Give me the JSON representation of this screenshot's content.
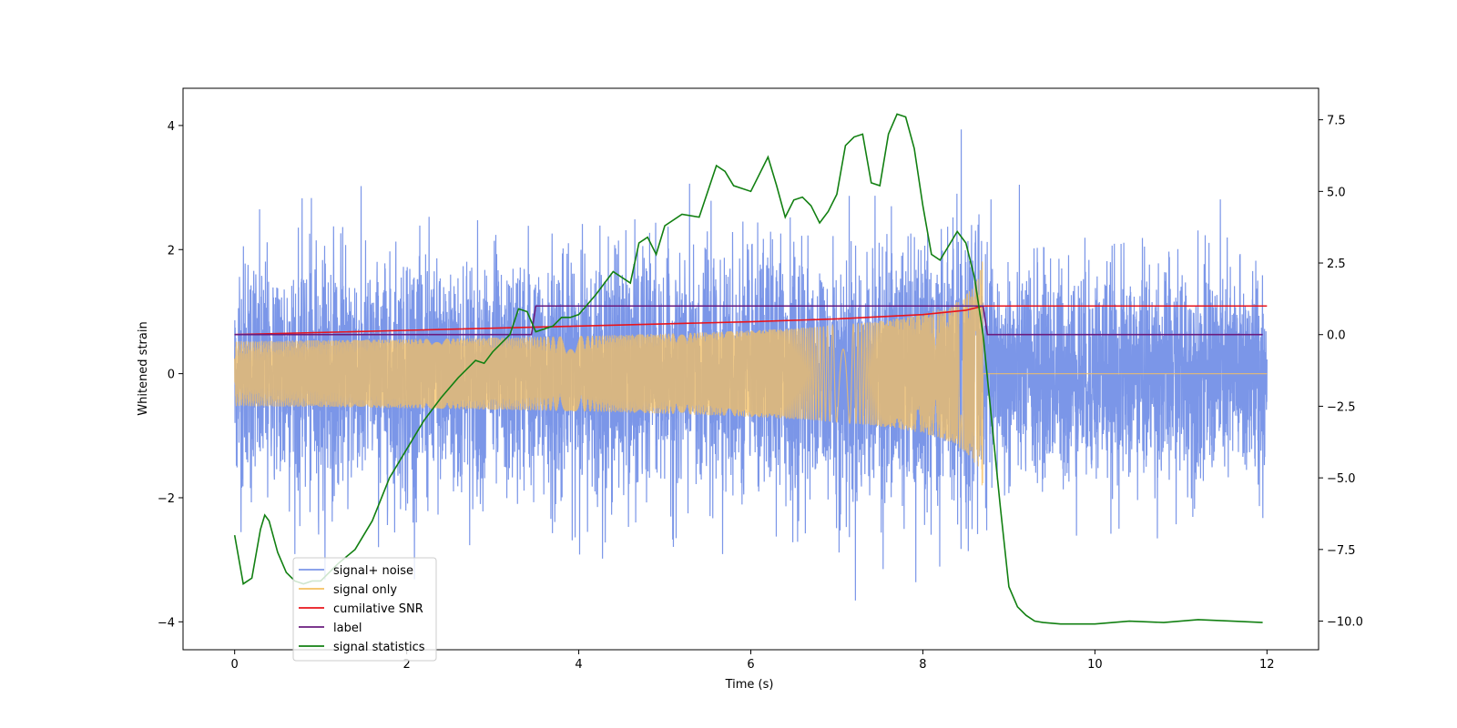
{
  "chart_data": {
    "type": "line",
    "title": "",
    "xlabel": "Time (s)",
    "ylabel": "Whitened strain",
    "ylabel_right": "",
    "xlim": [
      -0.6,
      12.6
    ],
    "ylim": [
      -4.45,
      4.6
    ],
    "ylim_right": [
      -11.0,
      8.6
    ],
    "x_ticks": [
      0,
      2,
      4,
      6,
      8,
      10,
      12
    ],
    "x_tick_labels": [
      "0",
      "2",
      "4",
      "6",
      "8",
      "10",
      "12"
    ],
    "y_ticks": [
      -4,
      -2,
      0,
      2,
      4
    ],
    "y_tick_labels": [
      "−4",
      "−2",
      "0",
      "2",
      "4"
    ],
    "y_right_ticks": [
      -10,
      -7.5,
      -5,
      -2.5,
      0,
      2.5,
      5,
      7.5
    ],
    "y_right_tick_labels": [
      "−10.0",
      "−7.5",
      "−5.0",
      "−2.5",
      "0.0",
      "2.5",
      "5.0",
      "7.5"
    ],
    "grid": false,
    "legend_position": "lower-left",
    "series": [
      {
        "name": "signal+ noise",
        "color": "#7b96e8",
        "axis": "left",
        "noise_sigma": 1.0,
        "x_range": [
          0,
          12
        ]
      },
      {
        "name": "signal only",
        "color": "#f5c061",
        "axis": "left",
        "chirp_peak_time": 8.7,
        "chirp_peak_amplitude": 1.9,
        "x_range": [
          0,
          12
        ]
      },
      {
        "name": "cumilative SNR",
        "color": "#e8141c",
        "axis": "right",
        "x": [
          0,
          2,
          4,
          6,
          7,
          8,
          8.5,
          8.7,
          8.72,
          12
        ],
        "y": [
          0.0,
          0.15,
          0.3,
          0.45,
          0.55,
          0.7,
          0.85,
          1.0,
          1.0,
          1.0
        ]
      },
      {
        "name": "label",
        "color": "#6a1b7e",
        "axis": "right",
        "x": [
          0,
          3.45,
          3.5,
          8.7,
          8.75,
          11.95
        ],
        "y": [
          0,
          0,
          1,
          1,
          0,
          0
        ]
      },
      {
        "name": "signal statistics",
        "color": "#128012",
        "axis": "right",
        "x": [
          0,
          0.1,
          0.2,
          0.3,
          0.35,
          0.4,
          0.5,
          0.6,
          0.7,
          0.8,
          0.9,
          1.0,
          1.2,
          1.4,
          1.6,
          1.8,
          2.0,
          2.2,
          2.4,
          2.6,
          2.8,
          2.9,
          3.0,
          3.2,
          3.3,
          3.4,
          3.5,
          3.6,
          3.7,
          3.8,
          3.9,
          4.0,
          4.2,
          4.4,
          4.6,
          4.7,
          4.8,
          4.9,
          5.0,
          5.2,
          5.4,
          5.6,
          5.7,
          5.8,
          6.0,
          6.2,
          6.3,
          6.4,
          6.5,
          6.6,
          6.7,
          6.8,
          6.9,
          7.0,
          7.1,
          7.2,
          7.3,
          7.4,
          7.5,
          7.6,
          7.7,
          7.8,
          7.9,
          8.0,
          8.1,
          8.2,
          8.4,
          8.5,
          8.6,
          8.7,
          8.8,
          8.9,
          9.0,
          9.1,
          9.2,
          9.3,
          9.4,
          9.6,
          10.0,
          10.4,
          10.8,
          11.2,
          11.6,
          11.95
        ],
        "y": [
          -7.0,
          -8.7,
          -8.5,
          -6.8,
          -6.3,
          -6.5,
          -7.6,
          -8.3,
          -8.6,
          -8.7,
          -8.6,
          -8.6,
          -8.0,
          -7.5,
          -6.5,
          -5.0,
          -4.0,
          -3.0,
          -2.2,
          -1.5,
          -0.9,
          -1.0,
          -0.6,
          0.0,
          0.9,
          0.8,
          0.1,
          0.2,
          0.3,
          0.6,
          0.6,
          0.7,
          1.4,
          2.2,
          1.8,
          3.2,
          3.4,
          2.8,
          3.8,
          4.2,
          4.1,
          5.9,
          5.7,
          5.2,
          5.0,
          6.2,
          5.2,
          4.1,
          4.7,
          4.8,
          4.5,
          3.9,
          4.3,
          4.9,
          6.6,
          6.9,
          7.0,
          5.3,
          5.2,
          7.0,
          7.7,
          7.6,
          6.5,
          4.5,
          2.8,
          2.6,
          3.6,
          3.2,
          2.0,
          0.0,
          -3.0,
          -6.0,
          -8.8,
          -9.5,
          -9.8,
          -10.0,
          -10.05,
          -10.1,
          -10.1,
          -10.0,
          -10.05,
          -9.95,
          -10.0,
          -10.05
        ]
      }
    ]
  }
}
